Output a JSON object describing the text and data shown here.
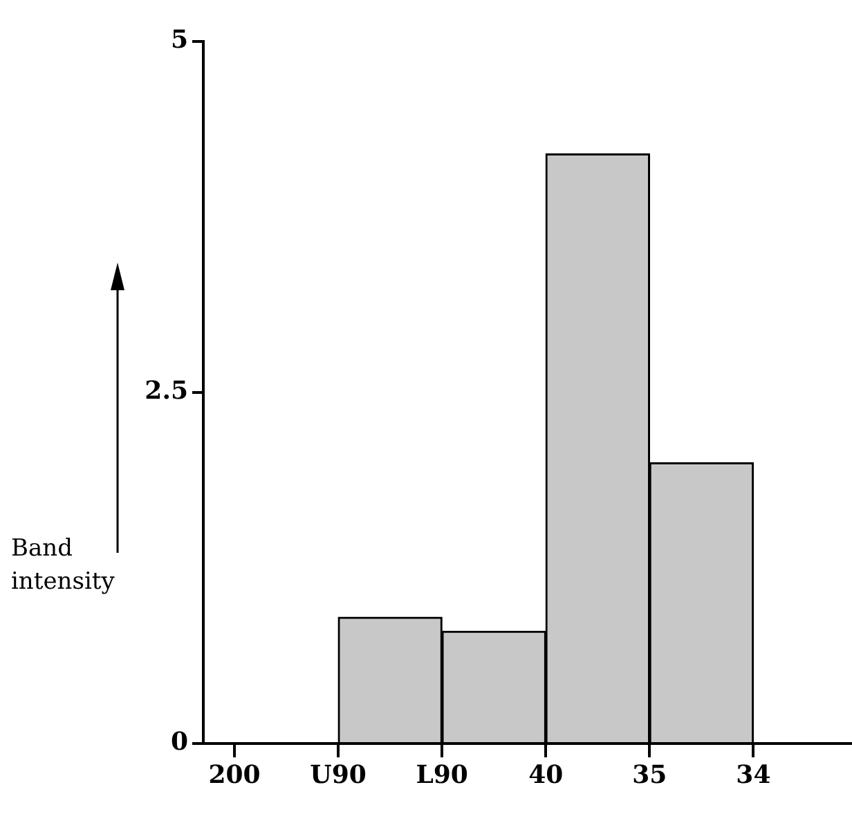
{
  "chart_data": {
    "type": "bar",
    "ylabel": "Band intensity",
    "categories": [
      "200",
      "U90",
      "L90",
      "40",
      "35",
      "34"
    ],
    "values": [
      null,
      0.9,
      0.8,
      4.2,
      2.0,
      null
    ],
    "color": "#c8c8c8",
    "ylim": [
      0,
      5
    ],
    "yticks": [
      0,
      2.5,
      5
    ],
    "grid": false,
    "legend": false
  }
}
